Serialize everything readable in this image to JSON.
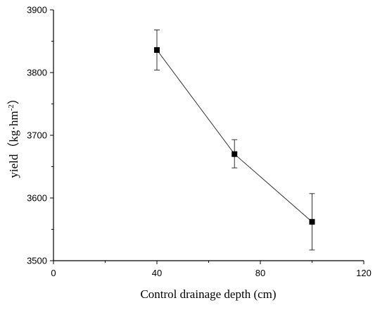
{
  "chart_data": {
    "type": "scatter",
    "xlabel": "Control drainage depth (cm)",
    "ylabel_main": "yield（kg·hm",
    "ylabel_sup": "-2",
    "ylabel_close": "）",
    "xlim": [
      0,
      120
    ],
    "ylim": [
      3500,
      3900
    ],
    "xticks": [
      0,
      40,
      80,
      120
    ],
    "xtick_labels": [
      "0",
      "40",
      "80",
      "120"
    ],
    "yticks": [
      3500,
      3600,
      3700,
      3800,
      3900
    ],
    "ytick_labels": [
      "3500",
      "3600",
      "3700",
      "3800",
      "3900"
    ],
    "grid": false,
    "series": [
      {
        "x": [
          40,
          70,
          100
        ],
        "y": [
          3836,
          3670,
          3562
        ],
        "err_low": [
          3804,
          3648,
          3517
        ],
        "err_high": [
          3868,
          3693,
          3607
        ],
        "marker": "square",
        "color": "#000000",
        "line_color": "#333333"
      }
    ]
  }
}
